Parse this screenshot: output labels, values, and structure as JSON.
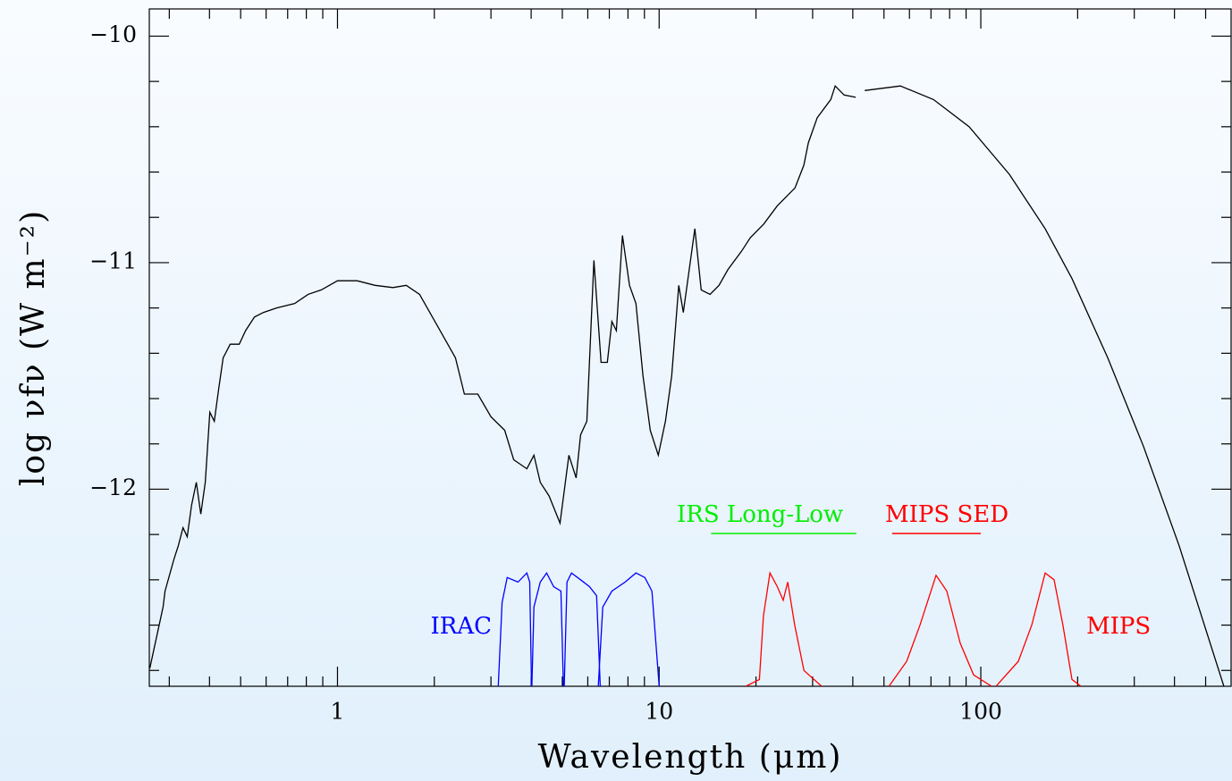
{
  "chart_data": {
    "type": "line",
    "xlabel": "Wavelength (μm)",
    "ylabel": "log νfν (W m⁻²)",
    "xscale": "log",
    "xlim": [
      0.26,
      600
    ],
    "ylim": [
      -12.87,
      -9.88
    ],
    "xticks": [
      1,
      10,
      100
    ],
    "xminorticks": [
      0.3,
      0.4,
      0.5,
      0.6,
      0.7,
      0.8,
      0.9,
      2,
      3,
      4,
      5,
      6,
      7,
      8,
      9,
      20,
      30,
      40,
      50,
      60,
      70,
      80,
      90,
      200,
      300,
      400,
      500
    ],
    "yticks": [
      {
        "value": -10,
        "label": "−10"
      },
      {
        "value": -11,
        "label": "−11"
      },
      {
        "value": -12,
        "label": "−12"
      }
    ],
    "yminorticks": [
      -10.2,
      -10.4,
      -10.6,
      -10.8,
      -11.2,
      -11.4,
      -11.6,
      -11.8,
      -12.2,
      -12.4,
      -12.6,
      -12.8
    ],
    "series": [
      {
        "color": "#000000",
        "x": [
          0.261,
          0.287,
          0.291,
          0.31,
          0.32,
          0.331,
          0.341,
          0.352,
          0.364,
          0.376,
          0.388,
          0.401,
          0.414,
          0.427,
          0.441,
          0.464,
          0.495,
          0.518,
          0.552,
          0.588,
          0.647,
          0.736,
          0.81,
          0.891,
          1.0,
          1.151,
          1.308,
          1.487,
          1.636,
          1.8,
          2.047,
          2.326,
          2.48,
          2.73,
          3.0,
          3.31,
          3.53,
          3.88,
          4.08,
          4.27,
          4.55,
          4.92,
          5.24,
          5.52,
          5.7,
          5.96,
          6.27,
          6.6,
          6.9,
          7.13,
          7.36,
          7.69,
          8.09,
          8.47,
          8.91,
          9.38,
          9.94,
          10.46,
          10.94,
          11.51,
          11.89,
          12.91,
          13.51,
          14.4,
          15.35,
          16.37,
          18.02,
          19.2,
          21.13,
          23.26,
          26.44,
          28.18,
          29.1,
          31.02,
          34.15,
          35.26,
          37.58,
          40.84,
          42,
          43.55,
          56.23,
          71.27,
          92.0,
          122.7,
          158.5,
          192.0,
          248.0,
          320.3,
          413.7,
          569.7
        ],
        "values": [
          -12.79,
          -12.52,
          -12.45,
          -12.31,
          -12.25,
          -12.17,
          -12.21,
          -12.07,
          -11.97,
          -12.11,
          -11.97,
          -11.66,
          -11.7,
          -11.56,
          -11.42,
          -11.36,
          -11.36,
          -11.3,
          -11.24,
          -11.22,
          -11.2,
          -11.18,
          -11.14,
          -11.12,
          -11.08,
          -11.08,
          -11.1,
          -11.11,
          -11.1,
          -11.14,
          -11.28,
          -11.42,
          -11.58,
          -11.58,
          -11.68,
          -11.74,
          -11.87,
          -11.91,
          -11.85,
          -11.97,
          -12.03,
          -12.15,
          -11.85,
          -11.95,
          -11.76,
          -11.7,
          -10.99,
          -11.44,
          -11.44,
          -11.26,
          -11.3,
          -10.88,
          -11.1,
          -11.18,
          -11.5,
          -11.74,
          -11.85,
          -11.7,
          -11.5,
          -11.1,
          -11.22,
          -10.85,
          -11.12,
          -11.14,
          -11.1,
          -11.03,
          -10.95,
          -10.89,
          -10.83,
          -10.75,
          -10.67,
          -10.57,
          -10.47,
          -10.36,
          -10.28,
          -10.22,
          -10.26,
          -10.27,
          null,
          -10.24,
          -10.22,
          -10.28,
          -10.4,
          -10.61,
          -10.85,
          -11.07,
          -11.42,
          -11.81,
          -12.25,
          -12.87
        ]
      },
      {
        "color": "#0000ff",
        "x": [
          3.16,
          3.25,
          3.37,
          3.64,
          3.88,
          3.96,
          4.01
        ],
        "values": [
          -12.87,
          -12.5,
          -12.39,
          -12.41,
          -12.37,
          -12.41,
          -12.87
        ]
      },
      {
        "color": "#0000ff",
        "x": [
          4.02,
          4.08,
          4.27,
          4.47,
          4.7,
          4.95,
          5.04
        ],
        "values": [
          -12.87,
          -12.52,
          -12.41,
          -12.37,
          -12.43,
          -12.45,
          -12.87
        ]
      },
      {
        "color": "#0000ff",
        "x": [
          5.07,
          5.17,
          5.34,
          5.7,
          6.07,
          6.39,
          6.56
        ],
        "values": [
          -12.87,
          -12.41,
          -12.37,
          -12.4,
          -12.43,
          -12.47,
          -12.87
        ]
      },
      {
        "color": "#0000ff",
        "x": [
          6.47,
          6.68,
          7.13,
          7.84,
          8.47,
          9.03,
          9.5,
          10.0
        ],
        "values": [
          -12.87,
          -12.52,
          -12.45,
          -12.41,
          -12.37,
          -12.39,
          -12.45,
          -12.87
        ]
      },
      {
        "color": "#ff0000",
        "x": [
          18.6,
          20.5,
          21.1,
          22.1,
          23.3,
          24.3,
          25.1,
          26.4,
          28.2,
          32.0
        ],
        "values": [
          -12.87,
          -12.84,
          -12.56,
          -12.37,
          -12.43,
          -12.49,
          -12.41,
          -12.6,
          -12.8,
          -12.87
        ]
      },
      {
        "color": "#ff0000",
        "x": [
          51.8,
          58.8,
          64.7,
          72.6,
          78.4,
          86.3,
          95.0,
          108
        ],
        "values": [
          -12.87,
          -12.76,
          -12.6,
          -12.38,
          -12.45,
          -12.68,
          -12.82,
          -12.87
        ]
      },
      {
        "color": "#ff0000",
        "x": [
          111.5,
          130.8,
          144,
          158.5,
          169,
          180,
          192,
          205
        ],
        "values": [
          -12.87,
          -12.76,
          -12.6,
          -12.37,
          -12.4,
          -12.6,
          -12.84,
          -12.87
        ]
      }
    ],
    "annotations": [
      {
        "text": "IRAC",
        "color": "#0000ff"
      },
      {
        "text": "IRS Long-Low",
        "color": "#00ee00",
        "range": [
          14.5,
          41
        ]
      },
      {
        "text": "MIPS SED",
        "color": "#ff0000",
        "range": [
          53,
          100
        ]
      },
      {
        "text": "MIPS",
        "color": "#ff0000"
      }
    ]
  }
}
